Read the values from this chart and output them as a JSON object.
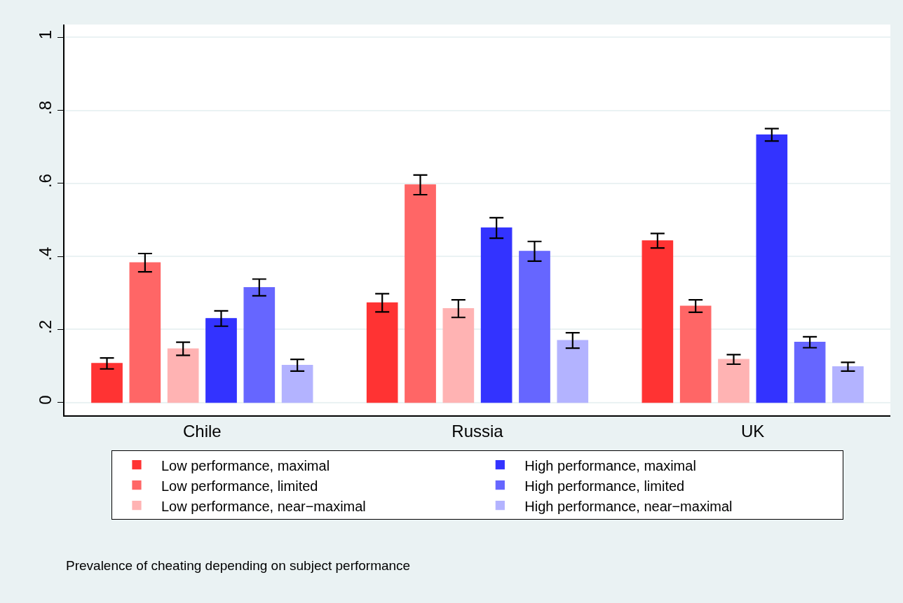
{
  "chart_data": {
    "type": "bar",
    "categories": [
      "Chile",
      "Russia",
      "UK"
    ],
    "series": [
      {
        "name": "Low performance, maximal",
        "color": "#ff3333",
        "values": [
          0.107,
          0.273,
          0.443
        ],
        "errors": [
          0.015,
          0.025,
          0.02
        ]
      },
      {
        "name": "Low performance, limited",
        "color": "#ff6666",
        "values": [
          0.383,
          0.596,
          0.264
        ],
        "errors": [
          0.025,
          0.027,
          0.017
        ]
      },
      {
        "name": "Low performance, near−maximal",
        "color": "#ffb3b3",
        "values": [
          0.147,
          0.257,
          0.118
        ],
        "errors": [
          0.018,
          0.024,
          0.013
        ]
      },
      {
        "name": "High performance, maximal",
        "color": "#3333ff",
        "values": [
          0.23,
          0.478,
          0.733
        ],
        "errors": [
          0.021,
          0.028,
          0.017
        ]
      },
      {
        "name": "High performance, limited",
        "color": "#6666ff",
        "values": [
          0.315,
          0.414,
          0.165
        ],
        "errors": [
          0.023,
          0.027,
          0.015
        ]
      },
      {
        "name": "High performance, near−maximal",
        "color": "#b3b3ff",
        "values": [
          0.102,
          0.17,
          0.098
        ],
        "errors": [
          0.016,
          0.021,
          0.012
        ]
      }
    ],
    "ylim": [
      -0.035,
      1.035
    ],
    "yticks": [
      0,
      {
        "value": 0.2,
        "label": ".2"
      },
      {
        "value": 0.4,
        "label": ".4"
      },
      {
        "value": 0.6,
        "label": ".6"
      },
      {
        "value": 0.8,
        "label": ".8"
      },
      1
    ],
    "grid": "y",
    "legend": "bottom",
    "annotations": [
      "Prevalence of cheating depending on subject performance"
    ]
  }
}
